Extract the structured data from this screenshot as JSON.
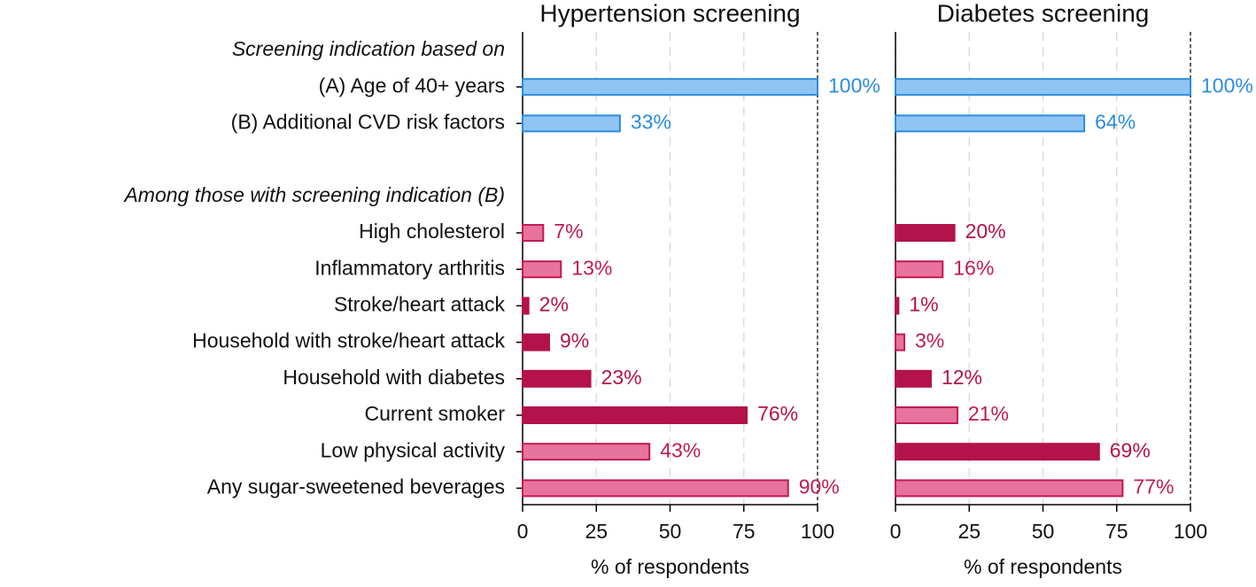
{
  "chart_data": [
    {
      "type": "hbar",
      "title": "Hypertension screening",
      "groups": [
        {
          "label": "Screening indication based on",
          "categories": [
            "(A) Age of 40+ years",
            "(B) Additional CVD risk factors"
          ]
        },
        {
          "label": "Among those with screening indication (B)",
          "categories": [
            "High cholesterol",
            "Inflammatory arthritis",
            "Stroke/heart attack",
            "Household with stroke/heart attack",
            "Household with diabetes",
            "Current smoker",
            "Low physical activity",
            "Any sugar-sweetened beverages"
          ]
        }
      ],
      "values": [
        100,
        33,
        7,
        13,
        2,
        9,
        23,
        76,
        43,
        90
      ],
      "value_labels": [
        "100%",
        "33%",
        "7%",
        "13%",
        "2%",
        "9%",
        "23%",
        "76%",
        "43%",
        "90%"
      ],
      "colors": [
        "#90c5f3",
        "#90c5f3",
        "#e8739c",
        "#e8739c",
        "#b3124a",
        "#b3124a",
        "#b3124a",
        "#b3124a",
        "#e8739c",
        "#e8739c"
      ],
      "edgecolors": [
        "#2a8be0",
        "#2a8be0",
        "#c01a55",
        "#c01a55",
        "#b3124a",
        "#b3124a",
        "#b3124a",
        "#b3124a",
        "#c01a55",
        "#c01a55"
      ],
      "xlim": [
        0,
        100
      ],
      "xticks": [
        0,
        25,
        50,
        75,
        100
      ],
      "xlabel": "% of respondents",
      "grid": true
    },
    {
      "type": "hbar",
      "title": "Diabetes screening",
      "values": [
        100,
        64,
        20,
        16,
        1,
        3,
        12,
        21,
        69,
        77
      ],
      "value_labels": [
        "100%",
        "64%",
        "20%",
        "16%",
        "1%",
        "3%",
        "12%",
        "21%",
        "69%",
        "77%"
      ],
      "colors": [
        "#90c5f3",
        "#90c5f3",
        "#b3124a",
        "#e8739c",
        "#b3124a",
        "#e8739c",
        "#b3124a",
        "#e8739c",
        "#b3124a",
        "#e8739c"
      ],
      "edgecolors": [
        "#2a8be0",
        "#2a8be0",
        "#b3124a",
        "#c01a55",
        "#b3124a",
        "#c01a55",
        "#b3124a",
        "#c01a55",
        "#b3124a",
        "#c01a55"
      ],
      "xlim": [
        0,
        100
      ],
      "xticks": [
        0,
        25,
        50,
        75,
        100
      ],
      "xlabel": "% of respondents",
      "grid": true
    }
  ]
}
